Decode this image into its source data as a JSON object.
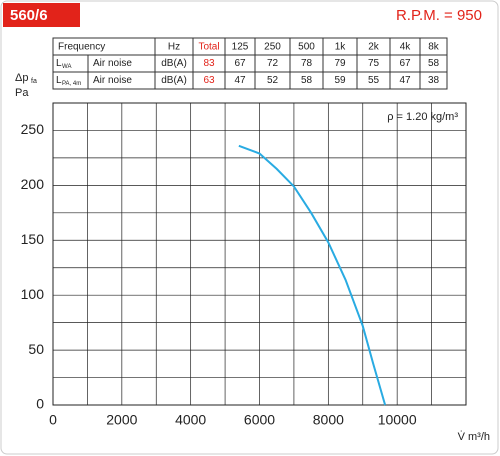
{
  "header": {
    "model": "560/6",
    "rpm": "R.P.M. = 950"
  },
  "table": {
    "header": [
      "Frequency",
      "Hz",
      "Total",
      "125",
      "250",
      "500",
      "1k",
      "2k",
      "4k",
      "8k"
    ],
    "rows": [
      {
        "symbol": "L",
        "symbol_sub": "WA",
        "label": "Air noise",
        "cells": [
          "dB(A)",
          83,
          67,
          72,
          78,
          79,
          75,
          67,
          58
        ]
      },
      {
        "symbol": "L",
        "symbol_sub": "PA, 4m",
        "label": "Air noise",
        "cells": [
          "dB(A)",
          63,
          47,
          52,
          58,
          59,
          55,
          47,
          38
        ]
      }
    ]
  },
  "chart_data": {
    "type": "line",
    "ylabel": "Δp",
    "ylabel_sub": "fa",
    "yunit": "Pa",
    "xlabel": "V̇ m³/h",
    "annotation": "ρ = 1.20 kg/m³",
    "x": [
      5400,
      6000,
      6500,
      7000,
      7500,
      8000,
      8500,
      9000,
      9300,
      9650
    ],
    "series": [
      {
        "name": "ρ = 1.20 kg/m³",
        "color": "#29abe2",
        "values": [
          236,
          229,
          215,
          199,
          175,
          148,
          114,
          72,
          38,
          0
        ]
      }
    ],
    "xlim": [
      0,
      12000
    ],
    "ylim": [
      0,
      275
    ],
    "xticks": [
      0,
      2000,
      4000,
      6000,
      8000,
      10000
    ],
    "minor_xticks": [
      1000,
      3000,
      5000,
      7000,
      9000,
      11000
    ],
    "yticks": [
      0,
      50,
      100,
      150,
      200,
      250
    ],
    "minor_yticks": [
      25,
      75,
      125,
      175,
      225
    ],
    "grid": true
  }
}
